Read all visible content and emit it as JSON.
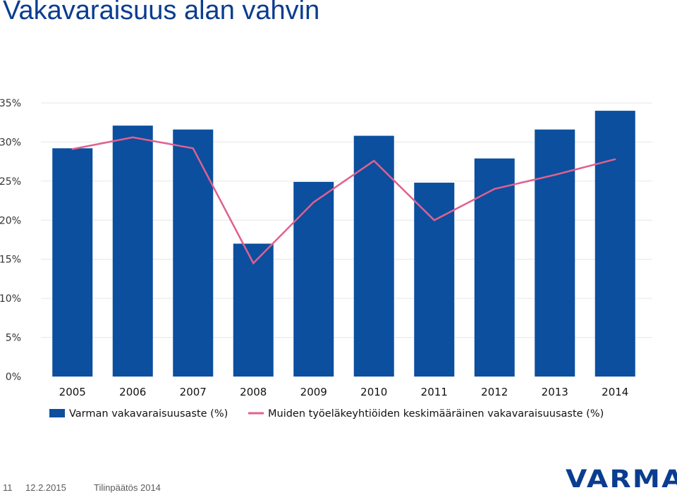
{
  "title": "Vakavaraisuus alan vahvin",
  "footer": {
    "slide_number": "11",
    "date": "12.2.2015",
    "label": "Tilinpäätös 2014"
  },
  "logo": {
    "text": "VARMA"
  },
  "colors": {
    "bar": "#0b4f9e",
    "line": "#e0608e",
    "title": "#0a3d8f",
    "grid": "#e6e6e6"
  },
  "chart_data": {
    "type": "bar",
    "categories": [
      "2005",
      "2006",
      "2007",
      "2008",
      "2009",
      "2010",
      "2011",
      "2012",
      "2013",
      "2014"
    ],
    "series": [
      {
        "name": "Varman vakavaraisuusaste (%)",
        "type": "bar",
        "values": [
          29.2,
          32.1,
          31.6,
          17.0,
          24.9,
          30.8,
          24.8,
          27.9,
          31.6,
          34.0
        ]
      },
      {
        "name": "Muiden työeläkeyhtiöiden keskimääräinen vakavaraisuusaste (%)",
        "type": "line",
        "values": [
          29.1,
          30.6,
          29.2,
          14.5,
          22.3,
          27.6,
          20.0,
          24.0,
          25.8,
          27.8
        ]
      }
    ],
    "ylim": [
      0,
      35
    ],
    "yticks": [
      0,
      5,
      10,
      15,
      20,
      25,
      30,
      35
    ],
    "ytick_labels": [
      "0%",
      "5%",
      "10%",
      "15%",
      "20%",
      "25%",
      "30%",
      "35%"
    ],
    "grid": true,
    "legend": "bottom"
  }
}
